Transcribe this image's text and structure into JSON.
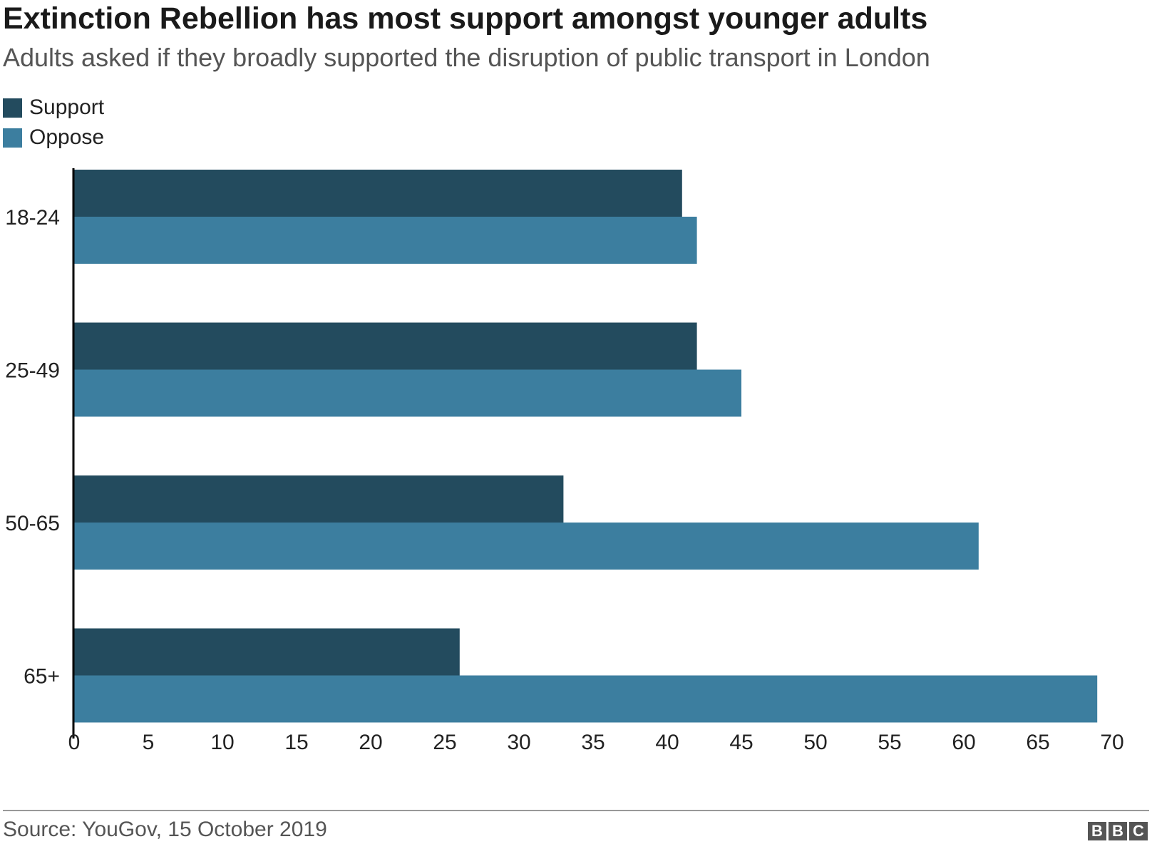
{
  "header": {
    "title": "Extinction Rebellion has most support amongst younger adults",
    "subtitle": "Adults asked if they broadly supported the disruption of public transport in London"
  },
  "footer": {
    "source": "Source: YouGov, 15 October 2019",
    "logo_letters": [
      "B",
      "B",
      "C"
    ]
  },
  "chart_data": {
    "type": "bar",
    "orientation": "horizontal",
    "categories": [
      "18-24",
      "25-49",
      "50-65",
      "65+"
    ],
    "series": [
      {
        "name": "Support",
        "color": "#234b5e",
        "values": [
          41,
          42,
          33,
          26
        ]
      },
      {
        "name": "Oppose",
        "color": "#3c7e9f",
        "values": [
          42,
          45,
          61,
          69
        ]
      }
    ],
    "xlim": [
      0,
      70
    ],
    "xticks": [
      0,
      5,
      10,
      15,
      20,
      25,
      30,
      35,
      40,
      45,
      50,
      55,
      60,
      65,
      70
    ],
    "grid": false,
    "legend_position": "top-left"
  }
}
